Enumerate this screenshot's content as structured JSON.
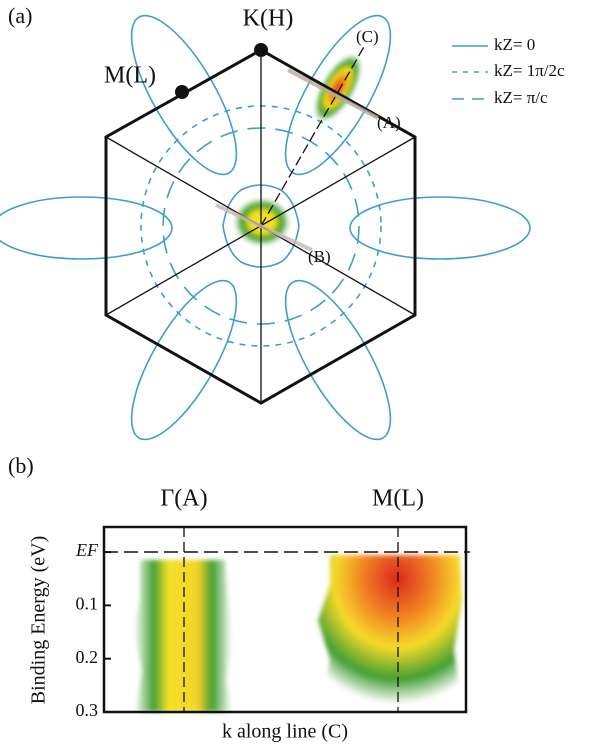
{
  "panel_a": {
    "label": "(a)",
    "point_labels": [
      "K(H)",
      "M(L)"
    ],
    "line_labels": [
      "(A)",
      "(B)",
      "(C)"
    ],
    "legend": [
      "kZ= 0",
      "kZ= 1π/2c",
      "kZ= π/c"
    ]
  },
  "panel_b": {
    "label": "(b)",
    "x_labels": [
      "Γ(A)",
      "M(L)"
    ],
    "y_axis_label": "Binding Energy (eV)",
    "x_axis_label": "k along line (C)",
    "ylim": [
      -0.047,
      0.3
    ],
    "yticks": [
      {
        "value": 0,
        "label": "EF"
      },
      0.1,
      0.2,
      0.3
    ]
  }
}
